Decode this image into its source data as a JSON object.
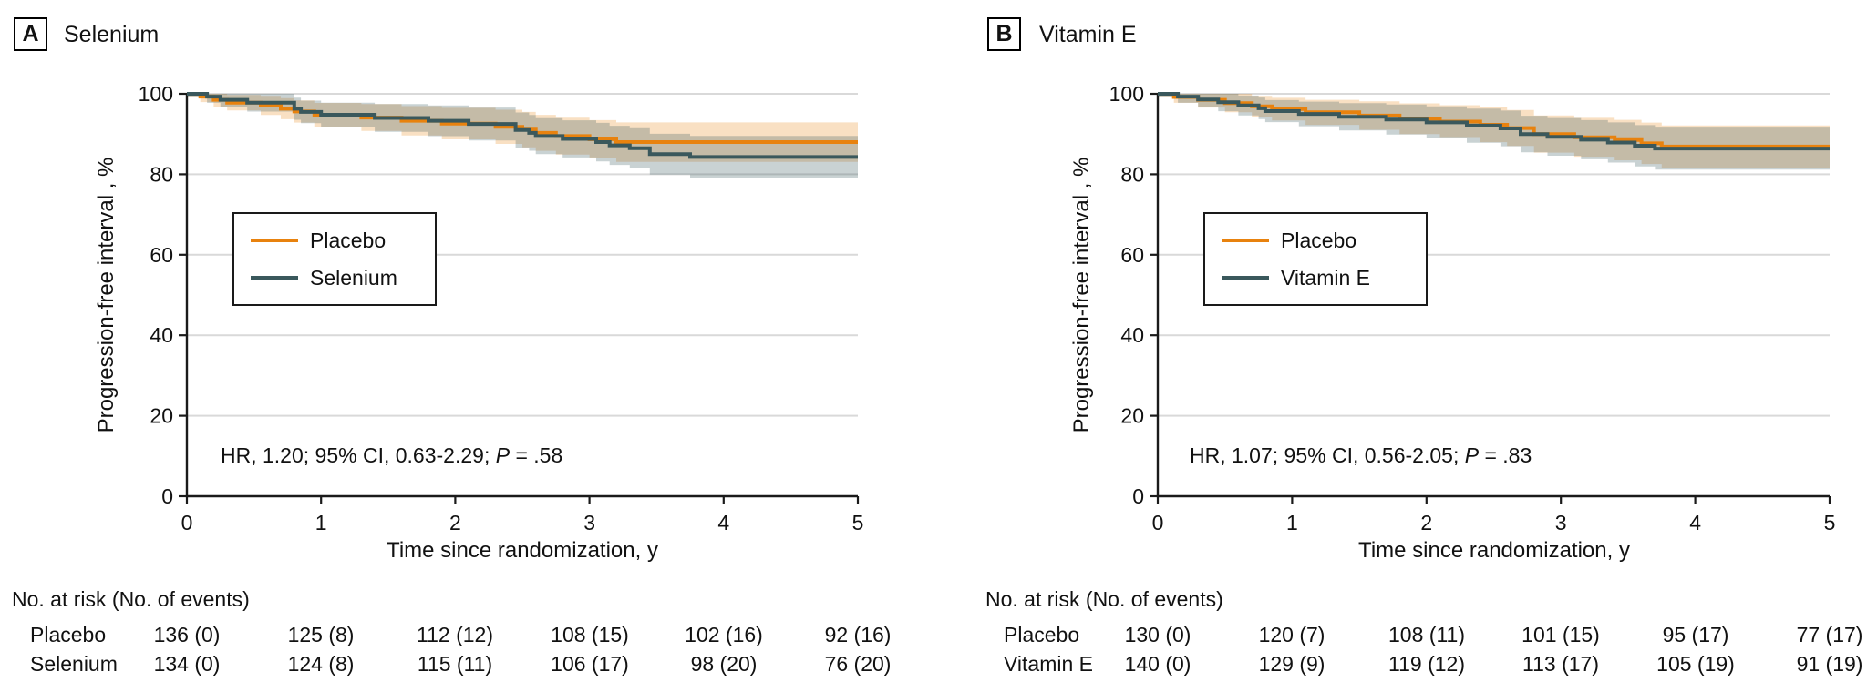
{
  "chart_data": [
    {
      "type": "line",
      "subtype": "kaplan-meier-step",
      "panel_tag": "A",
      "title": "Selenium",
      "xlabel": "Time since randomization, y",
      "ylabel": "Progression-free interval , %",
      "xlim": [
        0,
        5
      ],
      "ylim": [
        0,
        100
      ],
      "xticks": [
        0,
        1,
        2,
        3,
        4,
        5
      ],
      "yticks": [
        0,
        20,
        40,
        60,
        80,
        100
      ],
      "grid": true,
      "gridline_color": "#D9D9D9",
      "legend_position": "inside-left",
      "annotation": {
        "prefix": "HR, 1.20; 95% CI, 0.63-2.29; ",
        "p": "P",
        "rest": " = .58"
      },
      "ci": {
        "base": 0.6,
        "k": 2.4
      },
      "series": [
        {
          "name": "Placebo",
          "color": "#E8820E",
          "band_color": "rgba(232,130,14,0.25)",
          "steps": [
            [
              0,
              100
            ],
            [
              0.1,
              99.3
            ],
            [
              0.2,
              98.5
            ],
            [
              0.3,
              97.8
            ],
            [
              0.55,
              97.1
            ],
            [
              0.7,
              96.3
            ],
            [
              0.8,
              95.6
            ],
            [
              0.95,
              94.8
            ],
            [
              1.3,
              94.1
            ],
            [
              1.6,
              93.3
            ],
            [
              1.9,
              92.6
            ],
            [
              2.3,
              91.8
            ],
            [
              2.5,
              91.1
            ],
            [
              2.6,
              90.3
            ],
            [
              2.75,
              89.5
            ],
            [
              3.0,
              88.7
            ],
            [
              3.2,
              88.0
            ],
            [
              5,
              88.0
            ]
          ]
        },
        {
          "name": "Selenium",
          "color": "#3A585C",
          "band_color": "rgba(62,94,98,0.28)",
          "steps": [
            [
              0,
              100
            ],
            [
              0.15,
              99.3
            ],
            [
              0.25,
              98.5
            ],
            [
              0.45,
              97.8
            ],
            [
              0.8,
              96.3
            ],
            [
              0.85,
              95.5
            ],
            [
              1.0,
              94.8
            ],
            [
              1.4,
              94.0
            ],
            [
              1.8,
              93.3
            ],
            [
              2.1,
              92.5
            ],
            [
              2.45,
              91.0
            ],
            [
              2.55,
              90.3
            ],
            [
              2.6,
              89.5
            ],
            [
              2.8,
              88.8
            ],
            [
              3.05,
              88.0
            ],
            [
              3.15,
              87.2
            ],
            [
              3.3,
              86.5
            ],
            [
              3.45,
              85.0
            ],
            [
              3.75,
              84.3
            ],
            [
              5,
              84.3
            ]
          ]
        }
      ],
      "risk_table": {
        "header": "No. at risk (No. of events)",
        "rows": [
          {
            "label": "Placebo",
            "values": [
              "136 (0)",
              "125 (8)",
              "112 (12)",
              "108 (15)",
              "102 (16)",
              "92 (16)"
            ]
          },
          {
            "label": "Selenium",
            "values": [
              "134 (0)",
              "124 (8)",
              "115 (11)",
              "106 (17)",
              "98 (20)",
              "76 (20)"
            ]
          }
        ]
      }
    },
    {
      "type": "line",
      "subtype": "kaplan-meier-step",
      "panel_tag": "B",
      "title": "Vitamin E",
      "xlabel": "Time since randomization, y",
      "ylabel": "Progression-free interval , %",
      "xlim": [
        0,
        5
      ],
      "ylim": [
        0,
        100
      ],
      "xticks": [
        0,
        1,
        2,
        3,
        4,
        5
      ],
      "yticks": [
        0,
        20,
        40,
        60,
        80,
        100
      ],
      "grid": true,
      "gridline_color": "#D9D9D9",
      "legend_position": "inside-left",
      "annotation": {
        "prefix": "HR, 1.07; 95% CI, 0.56-2.05; ",
        "p": "P",
        "rest": " = .83"
      },
      "ci": {
        "base": 0.6,
        "k": 2.4
      },
      "series": [
        {
          "name": "Placebo",
          "color": "#E8820E",
          "band_color": "rgba(232,130,14,0.25)",
          "steps": [
            [
              0,
              100
            ],
            [
              0.12,
              99.2
            ],
            [
              0.3,
              98.5
            ],
            [
              0.5,
              97.7
            ],
            [
              0.7,
              96.9
            ],
            [
              0.85,
              96.2
            ],
            [
              1.1,
              95.4
            ],
            [
              1.5,
              94.6
            ],
            [
              1.8,
              93.8
            ],
            [
              2.1,
              93.1
            ],
            [
              2.4,
              92.3
            ],
            [
              2.6,
              91.5
            ],
            [
              2.8,
              90.0
            ],
            [
              3.1,
              89.2
            ],
            [
              3.4,
              88.5
            ],
            [
              3.6,
              87.7
            ],
            [
              3.75,
              86.9
            ],
            [
              5,
              86.9
            ]
          ]
        },
        {
          "name": "Vitamin E",
          "color": "#3A585C",
          "band_color": "rgba(62,94,98,0.28)",
          "steps": [
            [
              0,
              100
            ],
            [
              0.15,
              99.3
            ],
            [
              0.3,
              98.6
            ],
            [
              0.45,
              97.9
            ],
            [
              0.6,
              97.1
            ],
            [
              0.75,
              96.4
            ],
            [
              0.8,
              95.7
            ],
            [
              1.05,
              95.0
            ],
            [
              1.35,
              94.3
            ],
            [
              1.7,
              93.6
            ],
            [
              2.0,
              92.9
            ],
            [
              2.3,
              92.1
            ],
            [
              2.55,
              91.4
            ],
            [
              2.7,
              90.0
            ],
            [
              2.9,
              89.3
            ],
            [
              3.15,
              88.6
            ],
            [
              3.35,
              87.9
            ],
            [
              3.55,
              87.1
            ],
            [
              3.7,
              86.4
            ],
            [
              5,
              86.4
            ]
          ]
        }
      ],
      "risk_table": {
        "header": "No. at risk (No. of events)",
        "rows": [
          {
            "label": "Placebo",
            "values": [
              "130 (0)",
              "120 (7)",
              "108 (11)",
              "101 (15)",
              "95 (17)",
              "77 (17)"
            ]
          },
          {
            "label": "Vitamin E",
            "values": [
              "140 (0)",
              "129 (9)",
              "119 (12)",
              "113 (17)",
              "105 (19)",
              "91 (19)"
            ]
          }
        ]
      }
    }
  ]
}
